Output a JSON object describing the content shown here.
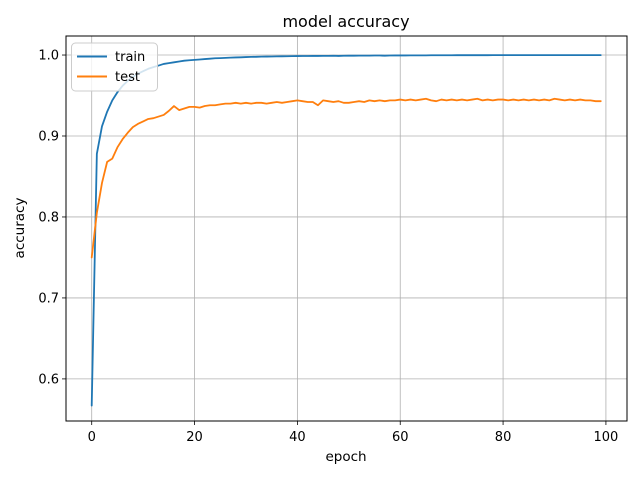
{
  "figure": {
    "background_color": "#ffffff",
    "grid_color": "#b0b0b0",
    "spine_color": "#000000",
    "legend": {
      "border_color": "#cccccc",
      "background_color": "#ffffff",
      "items": [
        {
          "label": "train",
          "color": "#1f77b4"
        },
        {
          "label": "test",
          "color": "#ff7f0e"
        }
      ]
    }
  },
  "chart_data": {
    "type": "line",
    "title": "model accuracy",
    "xlabel": "epoch",
    "ylabel": "accuracy",
    "xlim": [
      -5.0,
      104.1
    ],
    "ylim": [
      0.548,
      1.0235
    ],
    "grid": true,
    "legend_position": "upper-left",
    "x_start": 0,
    "x_step": 1,
    "xticks": {
      "values": [
        0,
        20,
        40,
        60,
        80,
        100
      ],
      "labels": [
        "0",
        "20",
        "40",
        "60",
        "80",
        "100"
      ]
    },
    "yticks": {
      "values": [
        0.6,
        0.7,
        0.8,
        0.9,
        1.0
      ],
      "labels": [
        "0.6",
        "0.7",
        "0.8",
        "0.9",
        "1.0"
      ]
    },
    "series": [
      {
        "name": "train",
        "color": "#1f77b4",
        "values": [
          0.567,
          0.878,
          0.912,
          0.93,
          0.944,
          0.954,
          0.962,
          0.968,
          0.973,
          0.977,
          0.98,
          0.983,
          0.985,
          0.987,
          0.989,
          0.99,
          0.991,
          0.992,
          0.993,
          0.9935,
          0.994,
          0.9945,
          0.995,
          0.9955,
          0.996,
          0.9962,
          0.9965,
          0.9968,
          0.997,
          0.9972,
          0.9975,
          0.9977,
          0.9978,
          0.998,
          0.9981,
          0.9982,
          0.9983,
          0.9984,
          0.9985,
          0.9986,
          0.9987,
          0.9988,
          0.9988,
          0.9989,
          0.9989,
          0.999,
          0.999,
          0.9991,
          0.9989,
          0.9991,
          0.9992,
          0.9992,
          0.9993,
          0.9993,
          0.9993,
          0.9994,
          0.9994,
          0.9992,
          0.9994,
          0.9995,
          0.9995,
          0.9995,
          0.9996,
          0.9996,
          0.9996,
          0.9996,
          0.9997,
          0.9997,
          0.9997,
          0.9997,
          0.9997,
          0.9998,
          0.9998,
          0.9998,
          0.9998,
          0.9998,
          0.9998,
          0.9998,
          0.9999,
          0.9999,
          0.9999,
          0.9999,
          0.9999,
          0.9999,
          0.9999,
          0.9999,
          0.9999,
          0.9999,
          0.9999,
          0.9999,
          0.9999,
          0.9999,
          0.9999,
          0.9999,
          0.9999,
          0.9999,
          0.9999,
          0.9999,
          0.9999,
          0.9999
        ]
      },
      {
        "name": "test",
        "color": "#ff7f0e",
        "values": [
          0.75,
          0.805,
          0.842,
          0.868,
          0.872,
          0.886,
          0.896,
          0.904,
          0.911,
          0.915,
          0.918,
          0.921,
          0.922,
          0.924,
          0.926,
          0.931,
          0.937,
          0.932,
          0.934,
          0.936,
          0.936,
          0.935,
          0.937,
          0.938,
          0.938,
          0.939,
          0.94,
          0.94,
          0.941,
          0.94,
          0.941,
          0.94,
          0.941,
          0.941,
          0.94,
          0.941,
          0.942,
          0.941,
          0.942,
          0.943,
          0.944,
          0.943,
          0.942,
          0.942,
          0.938,
          0.944,
          0.943,
          0.942,
          0.943,
          0.941,
          0.941,
          0.942,
          0.943,
          0.942,
          0.944,
          0.943,
          0.944,
          0.943,
          0.944,
          0.944,
          0.945,
          0.944,
          0.945,
          0.944,
          0.945,
          0.946,
          0.944,
          0.943,
          0.945,
          0.944,
          0.945,
          0.944,
          0.945,
          0.944,
          0.945,
          0.946,
          0.944,
          0.945,
          0.944,
          0.945,
          0.945,
          0.944,
          0.945,
          0.944,
          0.945,
          0.944,
          0.945,
          0.944,
          0.945,
          0.944,
          0.946,
          0.945,
          0.944,
          0.945,
          0.944,
          0.945,
          0.944,
          0.944,
          0.943,
          0.943
        ]
      }
    ]
  }
}
